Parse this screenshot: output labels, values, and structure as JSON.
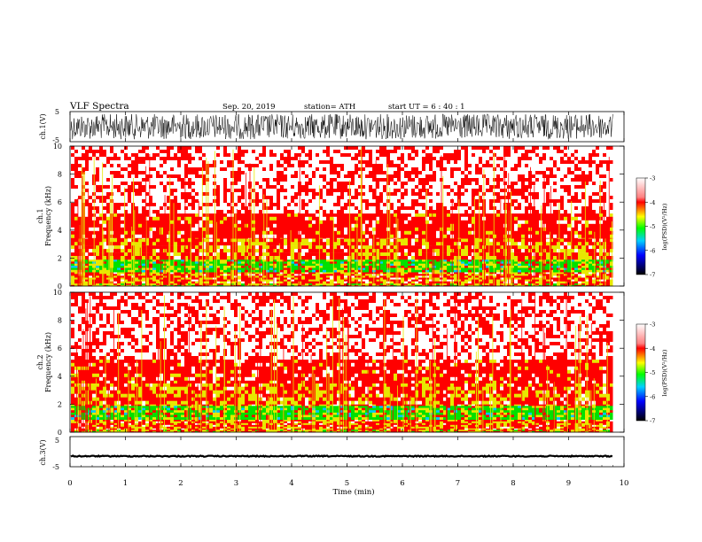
{
  "header": {
    "title": "VLF  Spectra",
    "date": "Sep. 20, 2019",
    "station": "station= ATH",
    "start": "start  UT  =    6  : 40 : 1"
  },
  "chart_data": [
    {
      "type": "line",
      "name": "ch1-waveform",
      "ylabel": "ch.1(V)",
      "ylim": [
        -5,
        5
      ],
      "yticks": [
        "5",
        "-5"
      ],
      "description_of_signal": "dense broadband noise, amplitude about ±4 V",
      "amplitude": 4.2,
      "xlim": [
        0,
        9.8
      ]
    },
    {
      "type": "heatmap",
      "name": "ch1-spectrogram",
      "ylabel": "ch.1\nFrequency  (kHz)",
      "ylim": [
        0,
        10
      ],
      "yticks": [
        "0",
        "2",
        "4",
        "6",
        "8",
        "10"
      ],
      "xlim": [
        0,
        9.8
      ],
      "bands": [
        {
          "from": 0,
          "to": 0.2,
          "level": -4.5
        },
        {
          "from": 0.2,
          "to": 1.0,
          "level": -4.2
        },
        {
          "from": 1.0,
          "to": 1.9,
          "level": -5.0
        },
        {
          "from": 1.9,
          "to": 3.4,
          "level": -4.2
        },
        {
          "from": 3.4,
          "to": 5.2,
          "level": -3.7
        },
        {
          "from": 5.2,
          "to": 10.0,
          "level": -3.1
        }
      ],
      "colorbar": {
        "label": "log(PSD)(V²/Hz)",
        "ticks": [
          "-3",
          "-4",
          "-5",
          "-6",
          "-7"
        ],
        "range": [
          -7,
          -3
        ]
      }
    },
    {
      "type": "heatmap",
      "name": "ch2-spectrogram",
      "ylabel": "ch.2\nFrequency  (kHz)",
      "ylim": [
        0,
        10
      ],
      "yticks": [
        "0",
        "2",
        "4",
        "6",
        "8",
        "10"
      ],
      "xlim": [
        0,
        9.8
      ],
      "bands": [
        {
          "from": 0,
          "to": 0.2,
          "level": -4.5
        },
        {
          "from": 0.2,
          "to": 0.9,
          "level": -4.3
        },
        {
          "from": 0.9,
          "to": 1.9,
          "level": -5.0
        },
        {
          "from": 1.9,
          "to": 3.5,
          "level": -4.3
        },
        {
          "from": 3.5,
          "to": 5.2,
          "level": -3.7
        },
        {
          "from": 5.2,
          "to": 10.0,
          "level": -3.1
        }
      ],
      "colorbar": {
        "label": "log(PSD)(V²/Hz)",
        "ticks": [
          "-3",
          "-4",
          "-5",
          "-6",
          "-7"
        ],
        "range": [
          -7,
          -3
        ]
      }
    },
    {
      "type": "line",
      "name": "ch3-waveform",
      "ylabel": "ch.3(V)",
      "ylim": [
        -5,
        5
      ],
      "yticks": [
        "5",
        "-5"
      ],
      "level": -1.5,
      "xlim": [
        0,
        9.8
      ]
    }
  ],
  "xaxis": {
    "label": "Time  (min)",
    "ticks": [
      "0",
      "1",
      "2",
      "3",
      "4",
      "5",
      "6",
      "7",
      "8",
      "9",
      "10"
    ],
    "range": [
      0,
      10
    ]
  },
  "colors": {
    "white": "#ffffff",
    "red": "#ff0000",
    "yellow": "#e8e800",
    "green": "#00e000",
    "cyan": "#00c8ff",
    "blue": "#0000ff",
    "black": "#000000"
  }
}
